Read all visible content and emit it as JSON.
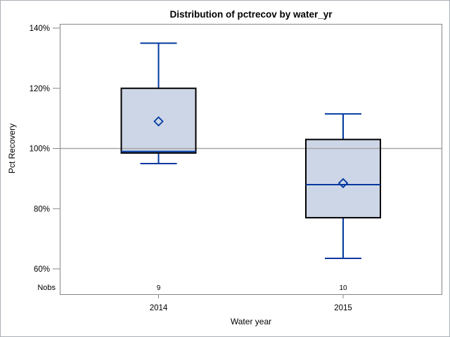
{
  "chart_data": {
    "type": "box",
    "title": "Distribution of pctrecov by water_yr",
    "xlabel": "Water year",
    "ylabel": "Pct Recovery",
    "y_axis": {
      "min": 60,
      "max": 140,
      "tick_step": 20,
      "tick_labels": [
        "140%",
        "120%",
        "100%",
        "80%",
        "60%"
      ],
      "grid": false
    },
    "reference_line_y": 100,
    "categories": [
      "2014",
      "2015"
    ],
    "nobs_label": "Nobs",
    "series": [
      {
        "category": "2014",
        "nobs": "9",
        "whisker_low": 95,
        "q1": 98.5,
        "median": 99,
        "q3": 120,
        "whisker_high": 135,
        "mean": 109
      },
      {
        "category": "2015",
        "nobs": "10",
        "whisker_low": 63.5,
        "q1": 77,
        "median": 88,
        "q3": 103,
        "whisker_high": 111.5,
        "mean": 88.5
      }
    ],
    "legend": "none",
    "colors": {
      "box_fill": "#cdd6e7",
      "box_border": "#000000",
      "whisker": "#0038a0",
      "median": "#0038a0",
      "mean_marker": "#0038a0",
      "reference_line": "#a6a6a6",
      "frame": "#868686",
      "background": "#ffffff"
    }
  }
}
